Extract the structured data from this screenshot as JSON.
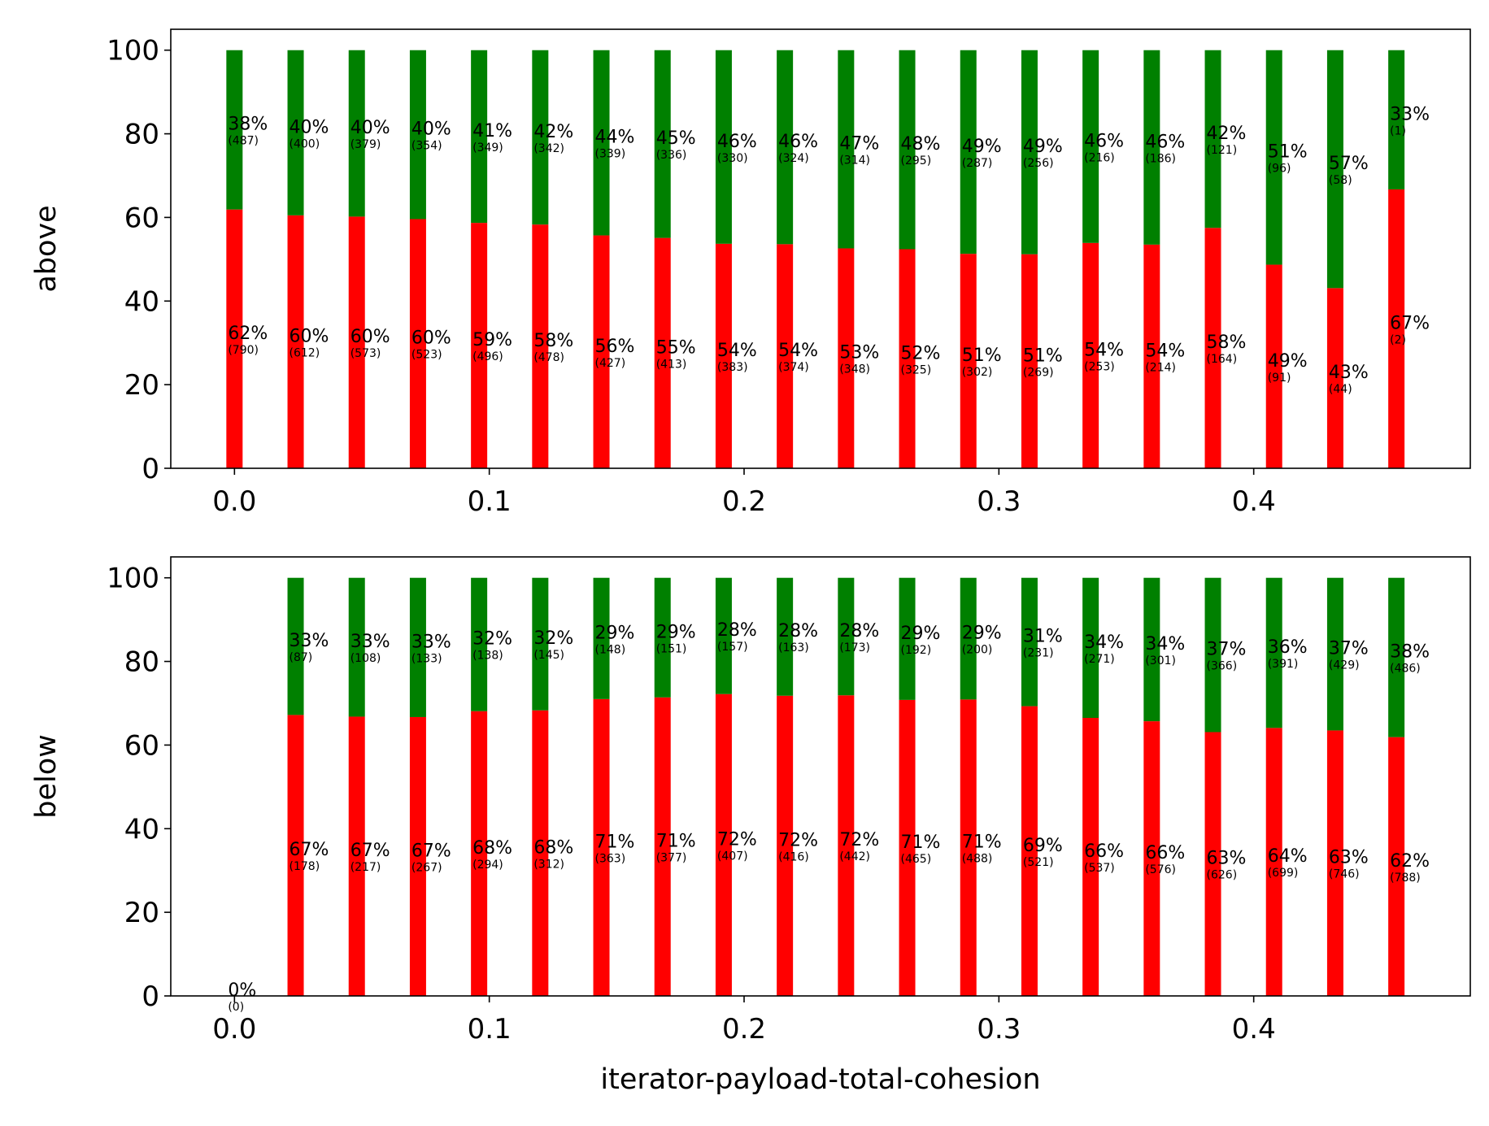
{
  "chart_data": [
    {
      "type": "bar",
      "stacked": true,
      "ylabel": "above",
      "xlabel": "",
      "ylim": [
        0,
        100
      ],
      "xlim": [
        -0.025,
        0.485
      ],
      "xticks": [
        "0.0",
        "0.1",
        "0.2",
        "0.3",
        "0.4"
      ],
      "yticks": [
        "0",
        "20",
        "40",
        "60",
        "80",
        "100"
      ],
      "colors": {
        "lower": "#ff0000",
        "upper": "#008000"
      },
      "x": [
        0.0,
        0.024,
        0.048,
        0.072,
        0.096,
        0.12,
        0.144,
        0.168,
        0.192,
        0.216,
        0.24,
        0.264,
        0.288,
        0.312,
        0.336,
        0.36,
        0.384,
        0.408,
        0.432,
        0.456
      ],
      "series": [
        {
          "role": "lower",
          "values": [
            61.9,
            60.5,
            60.2,
            59.6,
            58.7,
            58.3,
            55.7,
            55.1,
            53.7,
            53.6,
            52.6,
            52.4,
            51.3,
            51.2,
            53.9,
            53.5,
            57.5,
            48.7,
            43.1,
            66.7
          ],
          "labels": [
            "62%",
            "60%",
            "60%",
            "60%",
            "59%",
            "58%",
            "56%",
            "55%",
            "54%",
            "54%",
            "53%",
            "52%",
            "51%",
            "51%",
            "54%",
            "54%",
            "58%",
            "49%",
            "43%",
            "67%"
          ],
          "counts": [
            "(790)",
            "(612)",
            "(573)",
            "(523)",
            "(496)",
            "(478)",
            "(427)",
            "(413)",
            "(383)",
            "(374)",
            "(348)",
            "(325)",
            "(302)",
            "(269)",
            "(253)",
            "(214)",
            "(164)",
            "(91)",
            "(44)",
            "(2)"
          ]
        },
        {
          "role": "upper",
          "values": [
            38.1,
            39.5,
            39.8,
            40.4,
            41.3,
            41.7,
            44.3,
            44.9,
            46.3,
            46.4,
            47.4,
            47.6,
            48.7,
            48.8,
            46.1,
            46.5,
            42.5,
            51.3,
            56.9,
            33.3
          ],
          "labels": [
            "38%",
            "40%",
            "40%",
            "40%",
            "41%",
            "42%",
            "44%",
            "45%",
            "46%",
            "46%",
            "47%",
            "48%",
            "49%",
            "49%",
            "46%",
            "46%",
            "42%",
            "51%",
            "57%",
            "33%"
          ],
          "counts": [
            "(487)",
            "(400)",
            "(379)",
            "(354)",
            "(349)",
            "(342)",
            "(339)",
            "(336)",
            "(330)",
            "(324)",
            "(314)",
            "(295)",
            "(287)",
            "(256)",
            "(216)",
            "(186)",
            "(121)",
            "(96)",
            "(58)",
            "(1)"
          ]
        }
      ]
    },
    {
      "type": "bar",
      "stacked": true,
      "ylabel": "below",
      "xlabel": "iterator-payload-total-cohesion",
      "ylim": [
        0,
        100
      ],
      "xlim": [
        -0.025,
        0.485
      ],
      "xticks": [
        "0.0",
        "0.1",
        "0.2",
        "0.3",
        "0.4"
      ],
      "yticks": [
        "0",
        "20",
        "40",
        "60",
        "80",
        "100"
      ],
      "colors": {
        "lower": "#ff0000",
        "upper": "#008000"
      },
      "x": [
        0.0,
        0.024,
        0.048,
        0.072,
        0.096,
        0.12,
        0.144,
        0.168,
        0.192,
        0.216,
        0.24,
        0.264,
        0.288,
        0.312,
        0.336,
        0.36,
        0.384,
        0.408,
        0.432,
        0.456
      ],
      "series": [
        {
          "role": "lower",
          "values": [
            0,
            67.2,
            66.8,
            66.7,
            68.1,
            68.3,
            71.0,
            71.4,
            72.2,
            71.8,
            71.9,
            70.8,
            70.9,
            69.3,
            66.5,
            65.7,
            63.1,
            64.1,
            63.5,
            61.9
          ],
          "labels": [
            "0%",
            "67%",
            "67%",
            "67%",
            "68%",
            "68%",
            "71%",
            "71%",
            "72%",
            "72%",
            "72%",
            "71%",
            "71%",
            "69%",
            "66%",
            "66%",
            "63%",
            "64%",
            "63%",
            "62%"
          ],
          "counts": [
            "(0)",
            "(178)",
            "(217)",
            "(267)",
            "(294)",
            "(312)",
            "(363)",
            "(377)",
            "(407)",
            "(416)",
            "(442)",
            "(465)",
            "(488)",
            "(521)",
            "(537)",
            "(576)",
            "(626)",
            "(699)",
            "(746)",
            "(788)"
          ]
        },
        {
          "role": "upper",
          "values": [
            0,
            32.8,
            33.2,
            33.3,
            31.9,
            31.7,
            29.0,
            28.6,
            27.8,
            28.2,
            28.1,
            29.2,
            29.1,
            30.7,
            33.5,
            34.3,
            36.9,
            35.9,
            36.5,
            38.1
          ],
          "labels": [
            "",
            "33%",
            "33%",
            "33%",
            "32%",
            "32%",
            "29%",
            "29%",
            "28%",
            "28%",
            "28%",
            "29%",
            "29%",
            "31%",
            "34%",
            "34%",
            "37%",
            "36%",
            "37%",
            "38%"
          ],
          "counts": [
            "",
            "(87)",
            "(108)",
            "(133)",
            "(138)",
            "(145)",
            "(148)",
            "(151)",
            "(157)",
            "(163)",
            "(173)",
            "(192)",
            "(200)",
            "(231)",
            "(271)",
            "(301)",
            "(366)",
            "(391)",
            "(429)",
            "(486)"
          ]
        }
      ]
    }
  ]
}
